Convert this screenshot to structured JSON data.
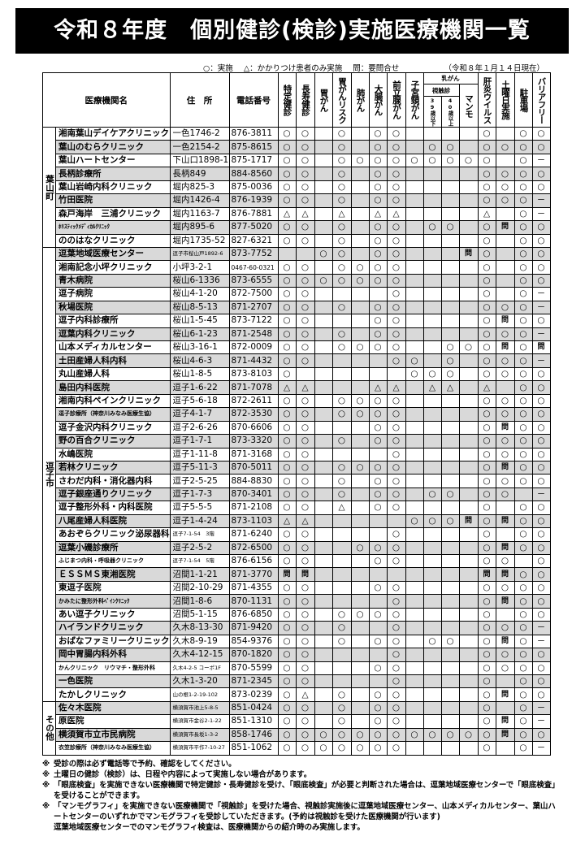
{
  "title": "令和８年度　個別健診(検診)実施医療機関一覧",
  "legend": {
    "done": "○：実施",
    "partial": "△：かかりつけ患者のみ実施",
    "inquire": "問：要問合せ",
    "as_of": "（令和８年１月１４日現在）"
  },
  "headers": {
    "name": "医療機関名",
    "address": "住　所",
    "phone": "電話番号",
    "tokutei": "特定健診",
    "choju": "長寿健診",
    "stomach": "胃がん",
    "stomach_risk": "胃がんリスク",
    "lung": "肺がん",
    "colon": "大腸がん",
    "prostate": "前立腺がん",
    "cervical": "子宮頸がん",
    "breast": "乳がん",
    "palpation": "視触診",
    "under39": "39歳以下",
    "over40": "40歳以上",
    "mammo": "マンモ",
    "hepatitis": "肝炎ウイルス",
    "saturday": "土曜日実施",
    "parking": "駐車場",
    "barrier_free": "バリアフリー"
  },
  "sections": [
    {
      "area": "葉山町",
      "rows": [
        {
          "name": "湘南葉山デイケアクリニック",
          "address": "一色1746-2",
          "phone": "876-3811",
          "marks": "○○ ○ ○○    ○ ○○"
        },
        {
          "name": "葉山のむらクリニック",
          "address": "一色2154-2",
          "phone": "875-8615",
          "marks": "○○ ○ ○○ ○○ ○○○○"
        },
        {
          "name": "葉山ハートセンター",
          "address": "下山口1898-1",
          "phone": "875-1717",
          "marks": "○○ ○○○○○○○○○ ○－"
        },
        {
          "name": "長柄診療所",
          "address": "長柄849",
          "phone": "884-8560",
          "marks": "○○ ○ ○○    ○○○○"
        },
        {
          "name": "葉山岩崎内科クリニック",
          "address": "堀内825-3",
          "phone": "875-0036",
          "marks": "○○ ○ ○○    ○○○○"
        },
        {
          "name": "竹田医院",
          "address": "堀内1426-4",
          "phone": "876-1939",
          "marks": "○○ ○ ○○    ○○○－"
        },
        {
          "name": "森戸海岸　三浦クリニック",
          "address": "堀内1163-7",
          "phone": "876-7881",
          "marks": "△△ △ △△    △ ○－"
        },
        {
          "name": "ﾎﾘｽﾃｨｯｸﾒﾃﾞｨｶﾙｸﾘﾆｯｸ",
          "address": "堀内895-6",
          "phone": "877-5020",
          "marks": "○○ ○ ○○ ○○ ○問○○"
        },
        {
          "name": "ののはなクリニック",
          "address": "堀内1735-52",
          "phone": "827-6321",
          "marks": "○○ ○ ○○    ○ ○○"
        }
      ]
    },
    {
      "area": "逗子市",
      "rows": [
        {
          "name": "逗葉地域医療センター",
          "address": "逗子市桜山戸1892-6",
          "phone": "873-7752",
          "marks": "  ○○ ○○   問○ ○○"
        },
        {
          "name": "湘南記念小坪クリニック",
          "address": "小坪3-2-1",
          "phone": "0467-60-0321",
          "marks": "○○ ○○○○    ○ ○○"
        },
        {
          "name": "青木病院",
          "address": "桜山6-1336",
          "phone": "873-6555",
          "marks": "○○○○○○○    ○ ○○"
        },
        {
          "name": "逗子病院",
          "address": "桜山4-1-20",
          "phone": "872-7500",
          "marks": "○○    ○    ○ ○－"
        },
        {
          "name": "秋場医院",
          "address": "桜山8-5-13",
          "phone": "871-2707",
          "marks": "○○ ○ ○○    ○○○－"
        },
        {
          "name": "逗子内科診療所",
          "address": "桜山1-5-45",
          "phone": "873-7122",
          "marks": "○○   ○○    ○問○○"
        },
        {
          "name": "逗葉内科クリニック",
          "address": "桜山6-1-23",
          "phone": "871-2548",
          "marks": "○○ ○ ○○    ○○○－"
        },
        {
          "name": "山本メディカルセンター",
          "address": "桜山3-16-1",
          "phone": "872-0009",
          "marks": "○○ ○○○○  ○○○問○問"
        },
        {
          "name": "土田産婦人科内科",
          "address": "桜山4-6-3",
          "phone": "871-4432",
          "marks": "○○    ○○ ○ ○○○－"
        },
        {
          "name": "丸山産婦人科",
          "address": "桜山1-8-5",
          "phone": "873-8103",
          "marks": "○      ○○○ ○○○○"
        },
        {
          "name": "島田内科医院",
          "address": "逗子1-6-22",
          "phone": "871-7078",
          "marks": "△△   △△ △△ △ ○○"
        },
        {
          "name": "湘南内科ペインクリニック",
          "address": "逗子5-6-18",
          "phone": "872-2611",
          "marks": "○○ ○○○○    ○○○○"
        },
        {
          "name": "逗子診療所（神奈川みなみ医療生協）",
          "address": "逗子4-1-7",
          "phone": "872-3530",
          "marks": "○○ ○○○○    ○○○○"
        },
        {
          "name": "逗子金沢内科クリニック",
          "address": "逗子2-6-26",
          "phone": "870-6606",
          "marks": "○○   ○○    ○問○○"
        },
        {
          "name": "野の百合クリニック",
          "address": "逗子1-7-1",
          "phone": "873-3320",
          "marks": "○○ ○ ○○    ○○○○"
        },
        {
          "name": "水嶋医院",
          "address": "逗子1-11-8",
          "phone": "871-3168",
          "marks": "○○    ○    ○○○○"
        },
        {
          "name": "若林クリニック",
          "address": "逗子5-11-3",
          "phone": "870-5011",
          "marks": "○○ ○○○○    ○問○○"
        },
        {
          "name": "さわだ内科・消化器内科",
          "address": "逗子2-5-25",
          "phone": "884-8830",
          "marks": "○○ ○ ○○    ○○○○"
        },
        {
          "name": "逗子銀座通りクリニック",
          "address": "逗子1-7-3",
          "phone": "870-3401",
          "marks": "○○ ○ ○○ ○○ ○○ －"
        },
        {
          "name": "逗子整形外科・内科医院",
          "address": "逗子5-5-5",
          "phone": "871-2108",
          "marks": "○○ △ ○○    ○ ○○"
        },
        {
          "name": "八尾産婦人科医院",
          "address": "逗子1-4-24",
          "phone": "873-1103",
          "marks": "△△     ○○○問○問○○"
        },
        {
          "name": "あおぞらクリニック泌尿器科",
          "address": "逗子7-1-54　3階",
          "phone": "871-6240",
          "marks": "○○    ○    ○ ○○"
        },
        {
          "name": "逗葉小磯診療所",
          "address": "逗子2-5-2",
          "phone": "872-6500",
          "marks": "○○  ○○○    ○問○○"
        },
        {
          "name": "ふじまつ内科・呼吸器クリニック",
          "address": "逗子7-1-54　5階",
          "phone": "876-6156",
          "marks": "○○   ○○    ○○ ○"
        },
        {
          "name": "ＥＳＳＭＳ東湘医院",
          "address": "沼間1-1-21",
          "phone": "871-3770",
          "marks": "問問         問問○○"
        },
        {
          "name": "東逗子医院",
          "address": "沼間2-10-29",
          "phone": "871-4355",
          "marks": "○○   ○○    ○○○○"
        },
        {
          "name": "かみたに整形外科ﾍﾟｲﾝｸﾘﾆｯｸ",
          "address": "沼間1-8-6",
          "phone": "870-1131",
          "marks": "○○    ○    ○問○○"
        },
        {
          "name": "あい逗子クリニック",
          "address": "沼間5-1-15",
          "phone": "876-6850",
          "marks": "○○ ○○○○    ○ ○○"
        },
        {
          "name": "ハイランドクリニック",
          "address": "久木8-13-30",
          "phone": "871-9420",
          "marks": "○○ ○  ○    ○○○－"
        },
        {
          "name": "おばなファミリークリニック",
          "address": "久木8-9-19",
          "phone": "854-9376",
          "marks": "○○ ○ ○○ ○○ ○問○－"
        },
        {
          "name": "岡中胃腸内科外科",
          "address": "久木4-12-15",
          "phone": "870-1820",
          "marks": "○○    ○    ○○○○"
        },
        {
          "name": "かんクリニック　リウマチ・整形外科",
          "address": "久木4-2-5 コーポ1F",
          "phone": "870-5599",
          "marks": "○○   ○○    ○○○○"
        },
        {
          "name": "一色医院",
          "address": "久木1-3-20",
          "phone": "871-2345",
          "marks": "○○    ○    ○ ○○"
        },
        {
          "name": "たかしクリニック",
          "address": "山の根1-2-19-102",
          "phone": "873-0239",
          "marks": "○△ ○ ○○    ○問○○"
        }
      ]
    },
    {
      "area": "その他",
      "rows": [
        {
          "name": "佐々木医院",
          "address": "横須賀市池上5-8-5",
          "phone": "851-0424",
          "marks": "○○ ○ ○○    ○ ○－"
        },
        {
          "name": "原医院",
          "address": "横須賀市金谷2-1-22",
          "phone": "851-1310",
          "marks": "○○ ○ ○○    ○問○－"
        },
        {
          "name": "横須賀市立市民病院",
          "address": "横須賀市長坂1-3-2",
          "phone": "858-1746",
          "marks": "○○○○○○○○○○○○問○○"
        },
        {
          "name": "衣笠診療所（神奈川みなみ医療生協）",
          "address": "横須賀市平作7-10-27",
          "phone": "851-1062",
          "marks": "○○○○○○○    ○ ○－"
        }
      ]
    }
  ],
  "notes": [
    "受診の際は必ず電話等で予約、確認をしてください。",
    "土曜日の健診（検診）は、日程や内容によって実施しない場合があります。",
    "「眼底検査」を実施できない医療機関で特定健診・長寿健診を受け、「眼底検査」が必要と判断された場合は、逗葉地域医療センターで「眼底検査」を受けることができます。",
    "「マンモグラフィ」を実施できない医療機関で「視触診」を受けた場合、視触診実施後に逗葉地域医療センター、山本メディカルセンター、葉山ハートセンターのいずれかでマンモグラフィを受診していただきます。(予約は視触診を受けた医療機関が行います)",
    "逗葉地域医療センターでのマンモグラフィ検査は、医療機関からの紹介時のみ実施します。"
  ],
  "note_mark": "※"
}
